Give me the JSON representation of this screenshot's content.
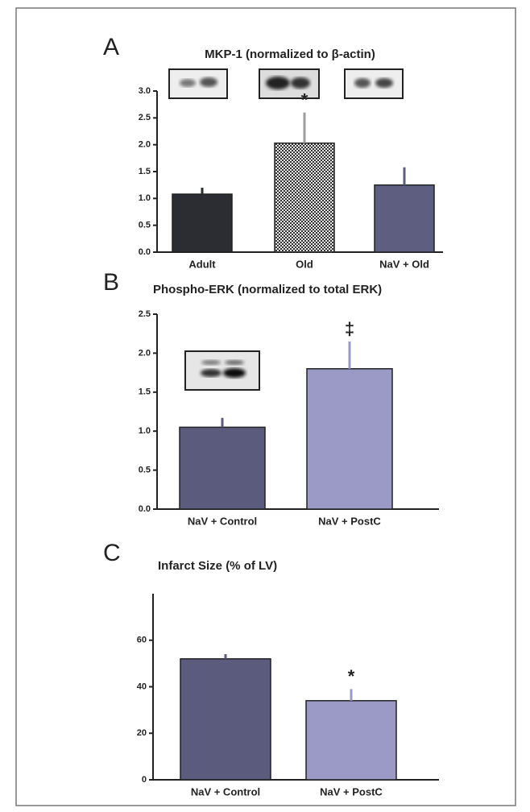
{
  "chart_data": [
    {
      "type": "bar",
      "panel": "A",
      "title": "MKP-1 (normalized to β-actin)",
      "categories": [
        "Adult",
        "Old",
        "NaV + Old"
      ],
      "values": [
        1.08,
        2.03,
        1.25
      ],
      "errors": [
        0.12,
        0.57,
        0.33
      ],
      "colors": [
        "#2b2d33",
        "#9c9c9c",
        "#5e5e80"
      ],
      "hatched": [
        false,
        true,
        false
      ],
      "annotations": [
        null,
        "*",
        null
      ],
      "ylim": [
        0,
        3.0
      ],
      "yticks": [
        {
          "value": 0,
          "label": "0.0"
        },
        {
          "value": 0.5,
          "label": "0.5"
        },
        {
          "value": 1,
          "label": "1.0"
        },
        {
          "value": 1.5,
          "label": "1.5"
        },
        {
          "value": 2,
          "label": "2.0"
        },
        {
          "value": 2.5,
          "label": "2.5"
        },
        {
          "value": 3,
          "label": "3.0"
        }
      ]
    },
    {
      "type": "bar",
      "panel": "B",
      "title": "Phospho-ERK (normalized to total ERK)",
      "categories": [
        "NaV + Control",
        "NaV + PostC"
      ],
      "values": [
        1.05,
        1.8
      ],
      "errors": [
        0.12,
        0.35
      ],
      "colors": [
        "#5b5b7d",
        "#9b99c6"
      ],
      "hatched": [
        false,
        false
      ],
      "annotations": [
        null,
        "‡"
      ],
      "ylim": [
        0,
        2.5
      ],
      "yticks": [
        {
          "value": 0,
          "label": "0.0"
        },
        {
          "value": 0.5,
          "label": "0.5"
        },
        {
          "value": 1,
          "label": "1.0"
        },
        {
          "value": 1.5,
          "label": "1.5"
        },
        {
          "value": 2,
          "label": "2.0"
        },
        {
          "value": 2.5,
          "label": "2.5"
        }
      ]
    },
    {
      "type": "bar",
      "panel": "C",
      "title": "Infarct Size (% of LV)",
      "categories": [
        "NaV + Control",
        "NaV + PostC"
      ],
      "values": [
        52,
        34
      ],
      "errors": [
        2,
        5
      ],
      "colors": [
        "#5b5b7d",
        "#9b99c6"
      ],
      "hatched": [
        false,
        false
      ],
      "annotations": [
        null,
        "*"
      ],
      "ylim": [
        0,
        80
      ],
      "yticks": [
        0,
        20,
        40,
        60
      ]
    }
  ]
}
